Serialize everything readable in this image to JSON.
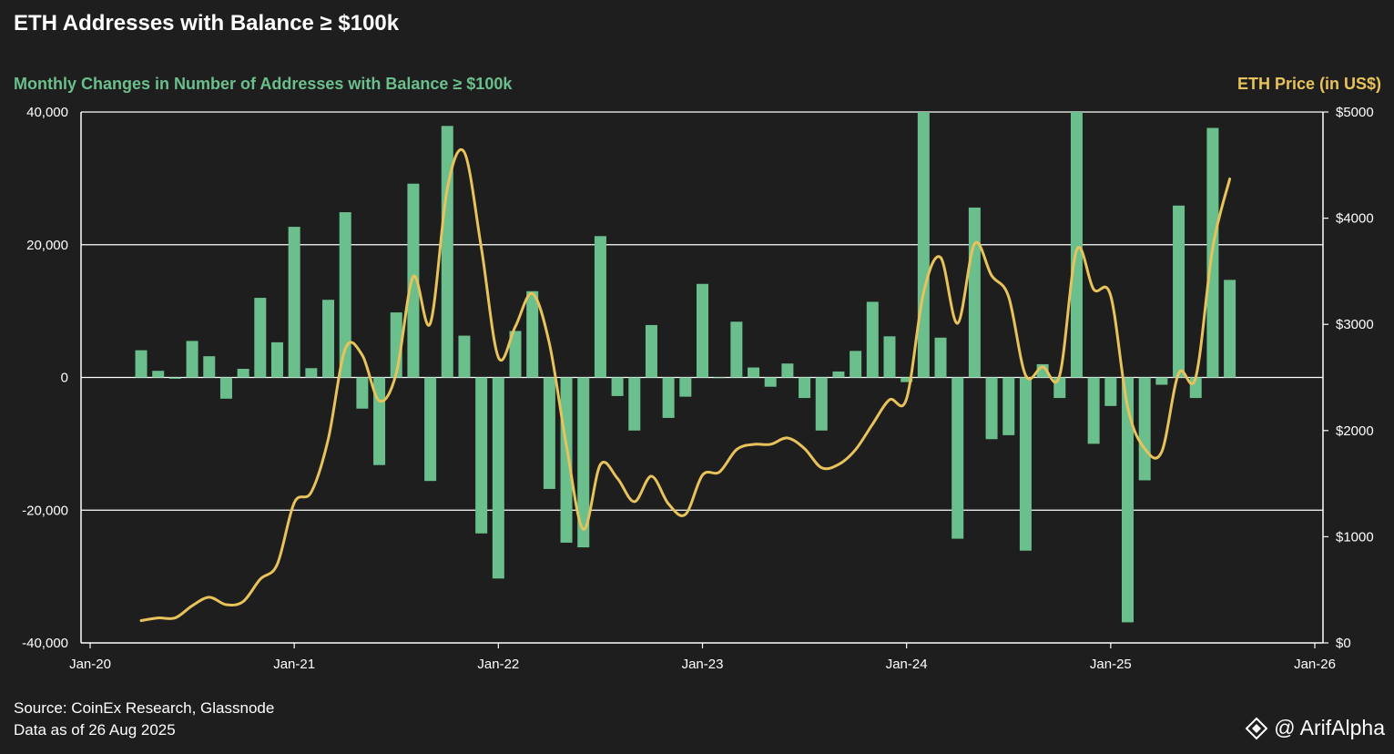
{
  "title": "ETH Addresses with Balance ≥ $100k",
  "left_axis_title": "Monthly Changes in Number of Addresses with Balance ≥ $100k",
  "right_axis_title": "ETH Price (in US$)",
  "footer": {
    "source": "Source: CoinEx Research, Glassnode",
    "date": "Data as of 26 Aug 2025"
  },
  "brand": {
    "label": "@ ArifAlpha",
    "icon": "diamond-logo-icon"
  },
  "colors": {
    "bars": "#6bbf8c",
    "line": "#e8c25a",
    "background": "#1e1e1e",
    "grid": "#ffffff"
  },
  "chart_data": {
    "type": "bar",
    "x_ticks": [
      "Jan-20",
      "Jan-21",
      "Jan-22",
      "Jan-23",
      "Jan-24",
      "Jan-25",
      "Jan-26"
    ],
    "y_left": {
      "min": -40000,
      "max": 40000,
      "ticks": [
        "40,000",
        "20,000",
        "0",
        "-20,000",
        "-40,000"
      ],
      "tick_values": [
        40000,
        20000,
        0,
        -20000,
        -40000
      ]
    },
    "y_right": {
      "min": 0,
      "max": 5000,
      "ticks": [
        "$5000",
        "$4000",
        "$3000",
        "$2000",
        "$1000",
        "$0"
      ],
      "tick_values": [
        5000,
        4000,
        3000,
        2000,
        1000,
        0
      ]
    },
    "grid": true,
    "series": [
      {
        "axis": "left",
        "kind": "bar",
        "x": [
          "2020-04",
          "2020-05",
          "2020-06",
          "2020-07",
          "2020-08",
          "2020-09",
          "2020-10",
          "2020-11",
          "2020-12",
          "2021-01",
          "2021-02",
          "2021-03",
          "2021-04",
          "2021-05",
          "2021-06",
          "2021-07",
          "2021-08",
          "2021-09",
          "2021-10",
          "2021-11",
          "2021-12",
          "2022-01",
          "2022-02",
          "2022-03",
          "2022-04",
          "2022-05",
          "2022-06",
          "2022-07",
          "2022-08",
          "2022-09",
          "2022-10",
          "2022-11",
          "2022-12",
          "2023-01",
          "2023-02",
          "2023-03",
          "2023-04",
          "2023-05",
          "2023-06",
          "2023-07",
          "2023-08",
          "2023-09",
          "2023-10",
          "2023-11",
          "2023-12",
          "2024-01",
          "2024-02",
          "2024-03",
          "2024-04",
          "2024-05",
          "2024-06",
          "2024-07",
          "2024-08",
          "2024-09",
          "2024-10",
          "2024-11",
          "2024-12",
          "2025-01",
          "2025-02",
          "2025-03",
          "2025-04",
          "2025-05",
          "2025-06",
          "2025-07",
          "2025-08"
        ],
        "values": [
          4100,
          1000,
          -200,
          5500,
          3200,
          -3200,
          1300,
          12000,
          5300,
          22700,
          1400,
          11700,
          24900,
          -4700,
          -13200,
          9800,
          29200,
          -15600,
          37900,
          6300,
          -23500,
          -30300,
          7000,
          13000,
          -16800,
          -24900,
          -25600,
          21300,
          -2800,
          -8000,
          7900,
          -6100,
          -2900,
          14100,
          -100,
          8400,
          1500,
          -1400,
          2100,
          -3100,
          -8000,
          900,
          4000,
          11400,
          6200,
          -700,
          40000,
          6000,
          -24300,
          25600,
          -9300,
          -8700,
          -26100,
          2000,
          -3100,
          40000,
          -10000,
          -4300,
          -36900,
          -15500,
          -1100,
          25900,
          -3100,
          37600,
          14700
        ]
      },
      {
        "axis": "right",
        "kind": "line",
        "x": [
          "2020-04",
          "2020-05",
          "2020-06",
          "2020-07",
          "2020-08",
          "2020-09",
          "2020-10",
          "2020-11",
          "2020-12",
          "2021-01",
          "2021-02",
          "2021-03",
          "2021-04",
          "2021-05",
          "2021-06",
          "2021-07",
          "2021-08",
          "2021-09",
          "2021-10",
          "2021-11",
          "2021-12",
          "2022-01",
          "2022-02",
          "2022-03",
          "2022-04",
          "2022-05",
          "2022-06",
          "2022-07",
          "2022-08",
          "2022-09",
          "2022-10",
          "2022-11",
          "2022-12",
          "2023-01",
          "2023-02",
          "2023-03",
          "2023-04",
          "2023-05",
          "2023-06",
          "2023-07",
          "2023-08",
          "2023-09",
          "2023-10",
          "2023-11",
          "2023-12",
          "2024-01",
          "2024-02",
          "2024-03",
          "2024-04",
          "2024-05",
          "2024-06",
          "2024-07",
          "2024-08",
          "2024-09",
          "2024-10",
          "2024-11",
          "2024-12",
          "2025-01",
          "2025-02",
          "2025-03",
          "2025-04",
          "2025-05",
          "2025-06",
          "2025-07",
          "2025-08"
        ],
        "values": [
          210,
          235,
          235,
          350,
          430,
          360,
          390,
          600,
          740,
          1320,
          1420,
          1920,
          2770,
          2710,
          2280,
          2540,
          3450,
          3010,
          4280,
          4620,
          3720,
          2690,
          2980,
          3290,
          2820,
          1860,
          1070,
          1680,
          1550,
          1330,
          1570,
          1310,
          1210,
          1580,
          1610,
          1820,
          1870,
          1870,
          1930,
          1830,
          1650,
          1680,
          1820,
          2060,
          2290,
          2300,
          3300,
          3630,
          3010,
          3760,
          3460,
          3260,
          2520,
          2600,
          2520,
          3700,
          3330,
          3270,
          2220,
          1830,
          1800,
          2540,
          2500,
          3720,
          4370
        ]
      }
    ]
  }
}
